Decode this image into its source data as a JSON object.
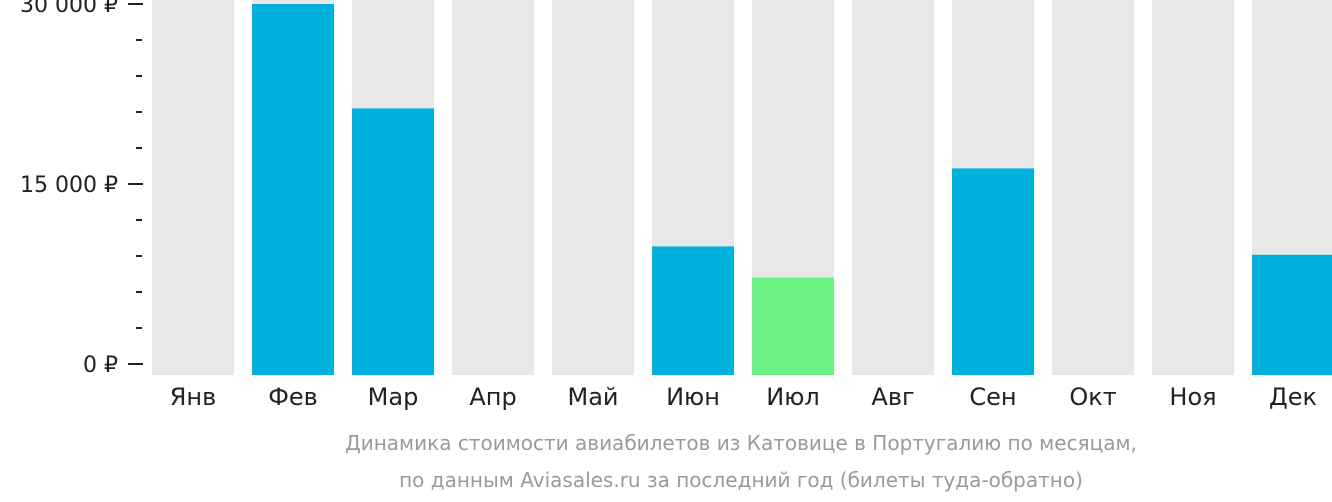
{
  "chart_data": {
    "type": "bar",
    "categories": [
      "Янв",
      "Фев",
      "Мар",
      "Апр",
      "Май",
      "Июн",
      "Июл",
      "Авг",
      "Сен",
      "Окт",
      "Ноя",
      "Дек"
    ],
    "values": [
      null,
      30000,
      21300,
      null,
      null,
      9800,
      7200,
      null,
      16300,
      null,
      null,
      9100
    ],
    "ylim": [
      0,
      30000
    ],
    "yticks": [
      {
        "value": 0,
        "label": "0 ₽"
      },
      {
        "value": 15000,
        "label": "15 000 ₽"
      },
      {
        "value": 30000,
        "label": "30 000 ₽"
      }
    ],
    "minor_tick_step": 3000,
    "grid": false,
    "legend": "none",
    "highlight_category": "Июл",
    "colors": {
      "bar": "#00b1dd",
      "highlight": "#6cf185",
      "background_column": "#e8e8e8",
      "axis": "#222222",
      "caption": "#9a9a9a"
    }
  },
  "caption": {
    "line1": "Динамика стоимости авиабилетов из Катовице в Португалию по месяцам,",
    "line2": "по данным Aviasales.ru за последний год (билеты туда-обратно)"
  }
}
